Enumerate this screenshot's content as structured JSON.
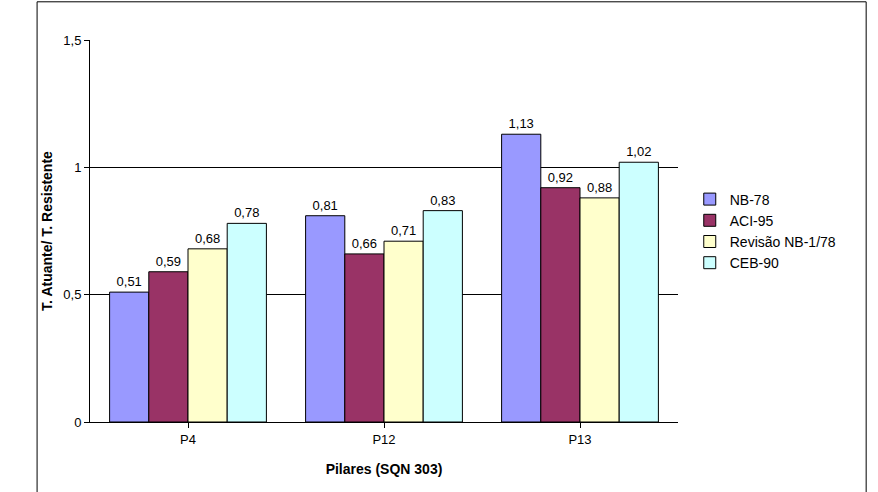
{
  "chart_data": {
    "type": "bar",
    "x_label": "Pilares (SQN 303)",
    "y_label": "T. Atuante/ T. Resistente",
    "categories": [
      "P4",
      "P12",
      "P13"
    ],
    "series": [
      {
        "name": "NB-78",
        "color": "#9999ff",
        "values": [
          0.51,
          0.81,
          1.13
        ],
        "value_labels": [
          "0,51",
          "0,81",
          "1,13"
        ]
      },
      {
        "name": "ACI-95",
        "color": "#993366",
        "values": [
          0.59,
          0.66,
          0.92
        ],
        "value_labels": [
          "0,59",
          "0,66",
          "0,92"
        ]
      },
      {
        "name": "Revisão NB-1/78",
        "color": "#ffffcc",
        "values": [
          0.68,
          0.71,
          0.88
        ],
        "value_labels": [
          "0,68",
          "0,71",
          "0,88"
        ]
      },
      {
        "name": "CEB-90",
        "color": "#ccffff",
        "values": [
          0.78,
          0.83,
          1.02
        ],
        "value_labels": [
          "0,78",
          "0,83",
          "1,02"
        ]
      }
    ],
    "ylim": [
      0,
      1.5
    ],
    "yticks": [
      0,
      {
        "value": 0.5,
        "label": "0,5"
      },
      1,
      {
        "value": 1.5,
        "label": "1,5"
      }
    ],
    "grid": true,
    "legend": "right",
    "data_labels": true
  }
}
